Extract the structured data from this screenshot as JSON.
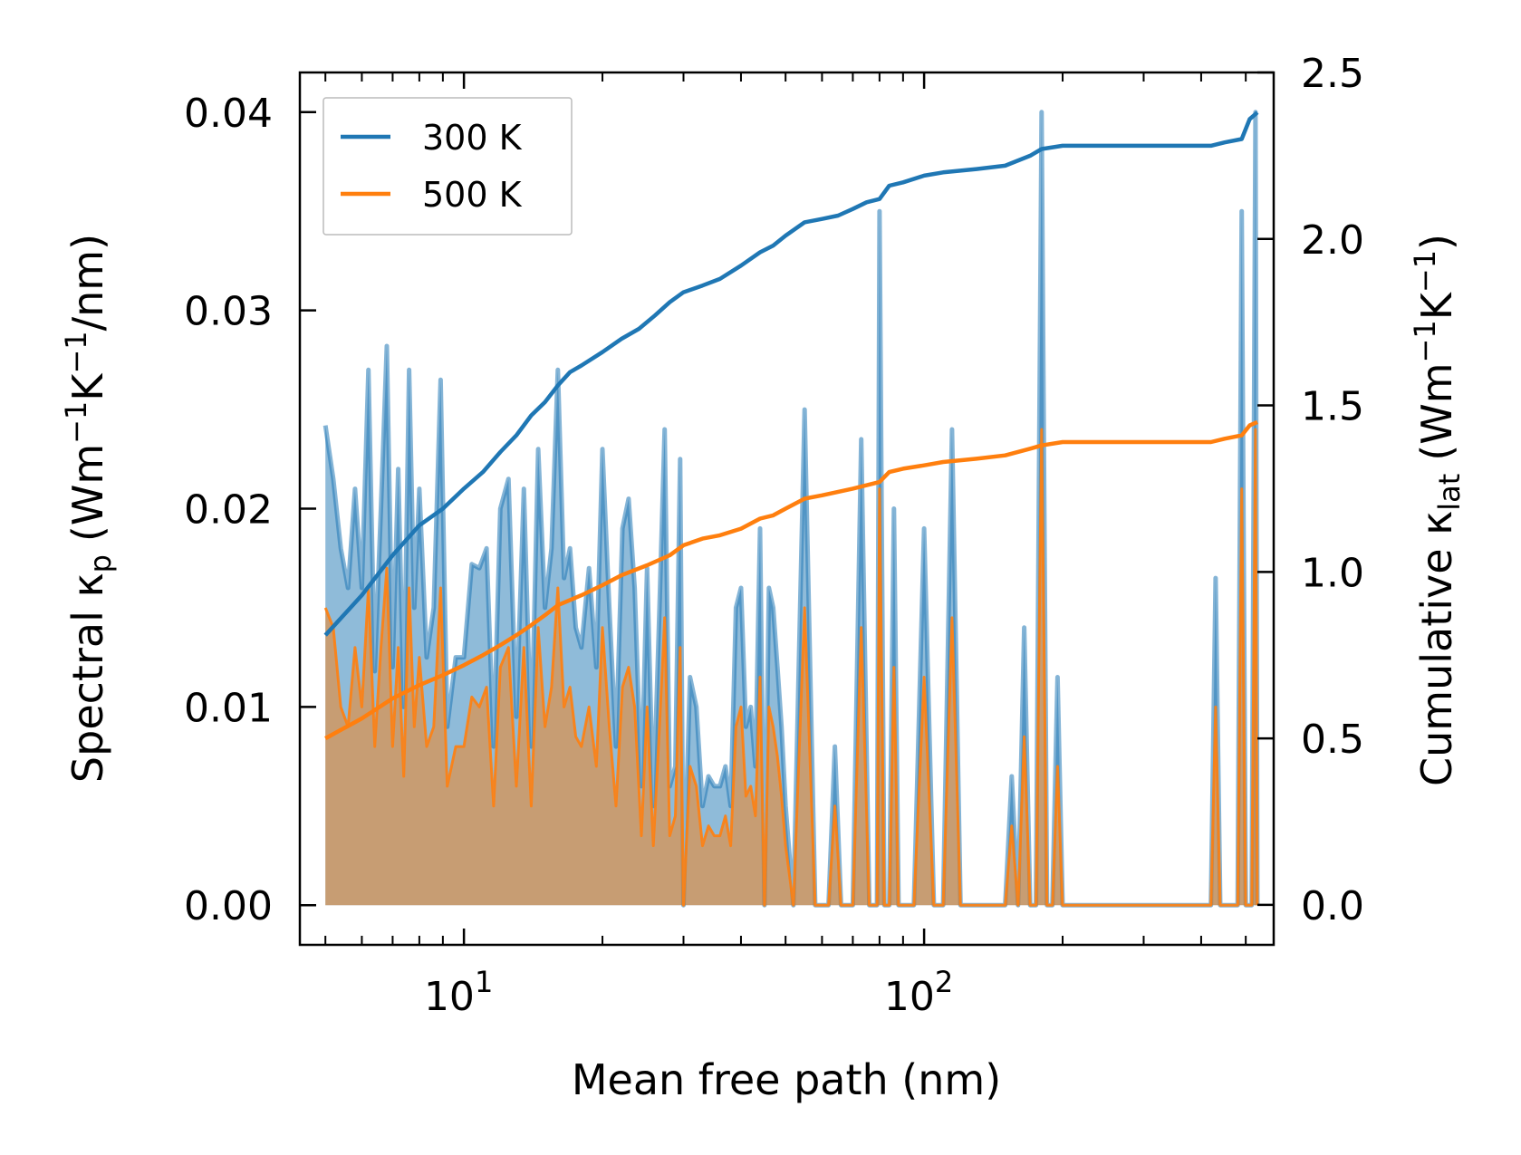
{
  "chart_data": {
    "type": "line",
    "title": "",
    "xlabel": "Mean free path (nm)",
    "xscale": "log",
    "xlim": [
      4.4,
      575
    ],
    "x_ticks": [
      {
        "value": 10,
        "base": "10",
        "exp": "1"
      },
      {
        "value": 100,
        "base": "10",
        "exp": "2"
      }
    ],
    "ylabel_left": {
      "main": "Spectral κ",
      "sub": "p",
      "rest": "(Wm",
      "sup1": "−1",
      "k": "K",
      "sup2": "−1",
      "tail": "/nm)"
    },
    "ylabel_right": {
      "main": "Cumulative κ",
      "sub": "lat",
      "rest": "(Wm",
      "sup1": "−1",
      "k": "K",
      "sup2": "−1",
      "tail": ")"
    },
    "ylim_left": [
      -0.002,
      0.042
    ],
    "ylim_right": [
      -0.12,
      2.5
    ],
    "y_ticks_left": [
      "0.00",
      "0.01",
      "0.02",
      "0.03",
      "0.04"
    ],
    "y_ticks_left_values": [
      0,
      0.01,
      0.02,
      0.03,
      0.04
    ],
    "y_ticks_right": [
      "0.0",
      "0.5",
      "1.0",
      "1.5",
      "2.0",
      "2.5"
    ],
    "y_ticks_right_values": [
      0,
      0.5,
      1.0,
      1.5,
      2.0,
      2.5
    ],
    "legend": {
      "position": "upper-left",
      "entries": [
        "300 K",
        "500 K"
      ]
    },
    "colors": {
      "300K": "#1f77b4",
      "500K": "#ff7f0e"
    },
    "spectral": {
      "300 K": [
        [
          5.0,
          0.0242
        ],
        [
          5.2,
          0.0215
        ],
        [
          5.4,
          0.018
        ],
        [
          5.6,
          0.016
        ],
        [
          5.8,
          0.021
        ],
        [
          6.0,
          0.016
        ],
        [
          6.2,
          0.027
        ],
        [
          6.4,
          0.0118
        ],
        [
          6.6,
          0.02
        ],
        [
          6.8,
          0.0282
        ],
        [
          7.0,
          0.012
        ],
        [
          7.2,
          0.022
        ],
        [
          7.4,
          0.01
        ],
        [
          7.6,
          0.027
        ],
        [
          7.8,
          0.015
        ],
        [
          8.0,
          0.021
        ],
        [
          8.3,
          0.0125
        ],
        [
          8.6,
          0.015
        ],
        [
          8.9,
          0.0265
        ],
        [
          9.2,
          0.009
        ],
        [
          9.6,
          0.0125
        ],
        [
          10.0,
          0.0125
        ],
        [
          10.4,
          0.0172
        ],
        [
          10.8,
          0.017
        ],
        [
          11.2,
          0.018
        ],
        [
          11.6,
          0.008
        ],
        [
          12.0,
          0.02
        ],
        [
          12.5,
          0.0215
        ],
        [
          13.0,
          0.0095
        ],
        [
          13.5,
          0.021
        ],
        [
          14.0,
          0.008
        ],
        [
          14.5,
          0.023
        ],
        [
          15.0,
          0.015
        ],
        [
          15.5,
          0.018
        ],
        [
          16.0,
          0.027
        ],
        [
          16.5,
          0.0165
        ],
        [
          17.0,
          0.018
        ],
        [
          17.5,
          0.014
        ],
        [
          18.0,
          0.013
        ],
        [
          18.7,
          0.017
        ],
        [
          19.4,
          0.012
        ],
        [
          20.0,
          0.023
        ],
        [
          20.7,
          0.015
        ],
        [
          21.4,
          0.008
        ],
        [
          22.1,
          0.019
        ],
        [
          22.8,
          0.0205
        ],
        [
          23.5,
          0.016
        ],
        [
          24.3,
          0.006
        ],
        [
          25.0,
          0.017
        ],
        [
          25.8,
          0.005
        ],
        [
          26.6,
          0.015
        ],
        [
          27.3,
          0.024
        ],
        [
          28.0,
          0.006
        ],
        [
          28.8,
          0.007
        ],
        [
          29.5,
          0.0225
        ],
        [
          30.0,
          0.0
        ],
        [
          31.0,
          0.0115
        ],
        [
          32.0,
          0.01
        ],
        [
          33.0,
          0.005
        ],
        [
          34.0,
          0.0065
        ],
        [
          35.0,
          0.006
        ],
        [
          36.0,
          0.006
        ],
        [
          37.0,
          0.007
        ],
        [
          38.0,
          0.005
        ],
        [
          39.0,
          0.015
        ],
        [
          40.0,
          0.016
        ],
        [
          41.0,
          0.009
        ],
        [
          42.0,
          0.01
        ],
        [
          43.0,
          0.007
        ],
        [
          44.0,
          0.019
        ],
        [
          45.0,
          0.0
        ],
        [
          46.0,
          0.016
        ],
        [
          47.0,
          0.015
        ],
        [
          48.0,
          0.012
        ],
        [
          49.0,
          0.009
        ],
        [
          50.0,
          0.005
        ],
        [
          52.0,
          0.0
        ],
        [
          55.0,
          0.025
        ],
        [
          58.0,
          0.0
        ],
        [
          62.0,
          0.0
        ],
        [
          64.0,
          0.008
        ],
        [
          66.0,
          0.0
        ],
        [
          70.0,
          0.0
        ],
        [
          73.0,
          0.0235
        ],
        [
          76.0,
          0.0
        ],
        [
          79.0,
          0.0
        ],
        [
          80.0,
          0.035
        ],
        [
          82.0,
          0.0
        ],
        [
          84.0,
          0.0
        ],
        [
          86.0,
          0.02
        ],
        [
          88.0,
          0.0
        ],
        [
          95.0,
          0.0
        ],
        [
          100.0,
          0.019
        ],
        [
          105.0,
          0.0
        ],
        [
          110.0,
          0.0
        ],
        [
          115.0,
          0.024
        ],
        [
          120.0,
          0.0
        ],
        [
          140.0,
          0.0
        ],
        [
          150.0,
          0.0
        ],
        [
          155.0,
          0.0065
        ],
        [
          160.0,
          0.0
        ],
        [
          165.0,
          0.014
        ],
        [
          170.0,
          0.0
        ],
        [
          175.0,
          0.0
        ],
        [
          180.0,
          0.04
        ],
        [
          185.0,
          0.0
        ],
        [
          190.0,
          0.0
        ],
        [
          195.0,
          0.0115
        ],
        [
          200.0,
          0.0
        ],
        [
          420.0,
          0.0
        ],
        [
          430.0,
          0.0165
        ],
        [
          440.0,
          0.0
        ],
        [
          480.0,
          0.0
        ],
        [
          490.0,
          0.035
        ],
        [
          500.0,
          0.0
        ],
        [
          515.0,
          0.0
        ],
        [
          525.0,
          0.04
        ],
        [
          530.0,
          0.0
        ]
      ],
      "500 K": [
        [
          5.0,
          0.015
        ],
        [
          5.2,
          0.014
        ],
        [
          5.4,
          0.01
        ],
        [
          5.6,
          0.009
        ],
        [
          5.8,
          0.013
        ],
        [
          6.0,
          0.01
        ],
        [
          6.2,
          0.016
        ],
        [
          6.4,
          0.008
        ],
        [
          6.6,
          0.013
        ],
        [
          6.8,
          0.017
        ],
        [
          7.0,
          0.008
        ],
        [
          7.2,
          0.013
        ],
        [
          7.4,
          0.0065
        ],
        [
          7.6,
          0.016
        ],
        [
          7.8,
          0.009
        ],
        [
          8.0,
          0.0125
        ],
        [
          8.3,
          0.008
        ],
        [
          8.6,
          0.009
        ],
        [
          8.9,
          0.016
        ],
        [
          9.2,
          0.006
        ],
        [
          9.6,
          0.008
        ],
        [
          10.0,
          0.008
        ],
        [
          10.4,
          0.0105
        ],
        [
          10.8,
          0.01
        ],
        [
          11.2,
          0.011
        ],
        [
          11.6,
          0.005
        ],
        [
          12.0,
          0.012
        ],
        [
          12.5,
          0.013
        ],
        [
          13.0,
          0.006
        ],
        [
          13.5,
          0.013
        ],
        [
          14.0,
          0.005
        ],
        [
          14.5,
          0.014
        ],
        [
          15.0,
          0.009
        ],
        [
          15.5,
          0.011
        ],
        [
          16.0,
          0.016
        ],
        [
          16.5,
          0.01
        ],
        [
          17.0,
          0.011
        ],
        [
          17.5,
          0.0085
        ],
        [
          18.0,
          0.008
        ],
        [
          18.7,
          0.01
        ],
        [
          19.4,
          0.007
        ],
        [
          20.0,
          0.014
        ],
        [
          20.7,
          0.009
        ],
        [
          21.4,
          0.005
        ],
        [
          22.1,
          0.011
        ],
        [
          22.8,
          0.012
        ],
        [
          23.5,
          0.01
        ],
        [
          24.3,
          0.0035
        ],
        [
          25.0,
          0.01
        ],
        [
          25.8,
          0.003
        ],
        [
          26.6,
          0.009
        ],
        [
          27.3,
          0.0145
        ],
        [
          28.0,
          0.0035
        ],
        [
          28.8,
          0.0045
        ],
        [
          29.5,
          0.013
        ],
        [
          30.0,
          0.0
        ],
        [
          31.0,
          0.007
        ],
        [
          32.0,
          0.006
        ],
        [
          33.0,
          0.003
        ],
        [
          34.0,
          0.004
        ],
        [
          35.0,
          0.0035
        ],
        [
          36.0,
          0.0035
        ],
        [
          37.0,
          0.0045
        ],
        [
          38.0,
          0.003
        ],
        [
          39.0,
          0.009
        ],
        [
          40.0,
          0.01
        ],
        [
          41.0,
          0.0055
        ],
        [
          42.0,
          0.006
        ],
        [
          43.0,
          0.0045
        ],
        [
          44.0,
          0.0115
        ],
        [
          45.0,
          0.0
        ],
        [
          46.0,
          0.01
        ],
        [
          47.0,
          0.009
        ],
        [
          48.0,
          0.0075
        ],
        [
          49.0,
          0.0055
        ],
        [
          50.0,
          0.003
        ],
        [
          52.0,
          0.0
        ],
        [
          55.0,
          0.015
        ],
        [
          58.0,
          0.0
        ],
        [
          62.0,
          0.0
        ],
        [
          64.0,
          0.005
        ],
        [
          66.0,
          0.0
        ],
        [
          70.0,
          0.0
        ],
        [
          73.0,
          0.014
        ],
        [
          76.0,
          0.0
        ],
        [
          79.0,
          0.0
        ],
        [
          80.0,
          0.021
        ],
        [
          82.0,
          0.0
        ],
        [
          84.0,
          0.0
        ],
        [
          86.0,
          0.012
        ],
        [
          88.0,
          0.0
        ],
        [
          95.0,
          0.0
        ],
        [
          100.0,
          0.0115
        ],
        [
          105.0,
          0.0
        ],
        [
          110.0,
          0.0
        ],
        [
          115.0,
          0.0145
        ],
        [
          120.0,
          0.0
        ],
        [
          140.0,
          0.0
        ],
        [
          150.0,
          0.0
        ],
        [
          155.0,
          0.004
        ],
        [
          160.0,
          0.0
        ],
        [
          165.0,
          0.0085
        ],
        [
          170.0,
          0.0
        ],
        [
          175.0,
          0.0
        ],
        [
          180.0,
          0.024
        ],
        [
          185.0,
          0.0
        ],
        [
          190.0,
          0.0
        ],
        [
          195.0,
          0.007
        ],
        [
          200.0,
          0.0
        ],
        [
          420.0,
          0.0
        ],
        [
          430.0,
          0.01
        ],
        [
          440.0,
          0.0
        ],
        [
          480.0,
          0.0
        ],
        [
          490.0,
          0.021
        ],
        [
          500.0,
          0.0
        ],
        [
          515.0,
          0.0
        ],
        [
          525.0,
          0.024
        ],
        [
          530.0,
          0.0
        ]
      ]
    },
    "cumulative": {
      "300 K": [
        [
          5.0,
          0.81
        ],
        [
          6.0,
          0.93
        ],
        [
          7.0,
          1.05
        ],
        [
          8.0,
          1.14
        ],
        [
          9.0,
          1.19
        ],
        [
          10.0,
          1.25
        ],
        [
          11.0,
          1.3
        ],
        [
          12.0,
          1.36
        ],
        [
          13.0,
          1.41
        ],
        [
          14.0,
          1.47
        ],
        [
          15.0,
          1.51
        ],
        [
          16.0,
          1.56
        ],
        [
          17.0,
          1.6
        ],
        [
          18.0,
          1.62
        ],
        [
          20.0,
          1.66
        ],
        [
          22.0,
          1.7
        ],
        [
          24.0,
          1.73
        ],
        [
          26.0,
          1.77
        ],
        [
          28.0,
          1.81
        ],
        [
          30.0,
          1.84
        ],
        [
          33.0,
          1.86
        ],
        [
          36.0,
          1.88
        ],
        [
          40.0,
          1.92
        ],
        [
          44.0,
          1.96
        ],
        [
          47.0,
          1.98
        ],
        [
          50.0,
          2.01
        ],
        [
          55.0,
          2.05
        ],
        [
          60.0,
          2.06
        ],
        [
          65.0,
          2.07
        ],
        [
          70.0,
          2.09
        ],
        [
          75.0,
          2.11
        ],
        [
          80.0,
          2.12
        ],
        [
          84.0,
          2.16
        ],
        [
          90.0,
          2.17
        ],
        [
          100.0,
          2.19
        ],
        [
          110.0,
          2.2
        ],
        [
          130.0,
          2.21
        ],
        [
          150.0,
          2.22
        ],
        [
          170.0,
          2.25
        ],
        [
          180.0,
          2.27
        ],
        [
          200.0,
          2.28
        ],
        [
          300.0,
          2.28
        ],
        [
          420.0,
          2.28
        ],
        [
          450.0,
          2.29
        ],
        [
          490.0,
          2.3
        ],
        [
          510.0,
          2.36
        ],
        [
          530.0,
          2.38
        ]
      ],
      "500 K": [
        [
          5.0,
          0.5
        ],
        [
          6.0,
          0.56
        ],
        [
          7.0,
          0.62
        ],
        [
          8.0,
          0.66
        ],
        [
          9.0,
          0.69
        ],
        [
          10.0,
          0.72
        ],
        [
          11.0,
          0.75
        ],
        [
          12.0,
          0.78
        ],
        [
          13.0,
          0.81
        ],
        [
          14.0,
          0.84
        ],
        [
          15.0,
          0.87
        ],
        [
          16.0,
          0.9
        ],
        [
          18.0,
          0.93
        ],
        [
          20.0,
          0.96
        ],
        [
          22.0,
          0.99
        ],
        [
          25.0,
          1.02
        ],
        [
          28.0,
          1.05
        ],
        [
          30.0,
          1.08
        ],
        [
          33.0,
          1.1
        ],
        [
          36.0,
          1.11
        ],
        [
          40.0,
          1.13
        ],
        [
          44.0,
          1.16
        ],
        [
          47.0,
          1.17
        ],
        [
          50.0,
          1.19
        ],
        [
          55.0,
          1.22
        ],
        [
          60.0,
          1.23
        ],
        [
          70.0,
          1.25
        ],
        [
          80.0,
          1.27
        ],
        [
          84.0,
          1.3
        ],
        [
          90.0,
          1.31
        ],
        [
          100.0,
          1.32
        ],
        [
          110.0,
          1.33
        ],
        [
          130.0,
          1.34
        ],
        [
          150.0,
          1.35
        ],
        [
          170.0,
          1.37
        ],
        [
          180.0,
          1.38
        ],
        [
          200.0,
          1.39
        ],
        [
          300.0,
          1.39
        ],
        [
          420.0,
          1.39
        ],
        [
          450.0,
          1.4
        ],
        [
          490.0,
          1.41
        ],
        [
          510.0,
          1.44
        ],
        [
          530.0,
          1.45
        ]
      ]
    }
  }
}
